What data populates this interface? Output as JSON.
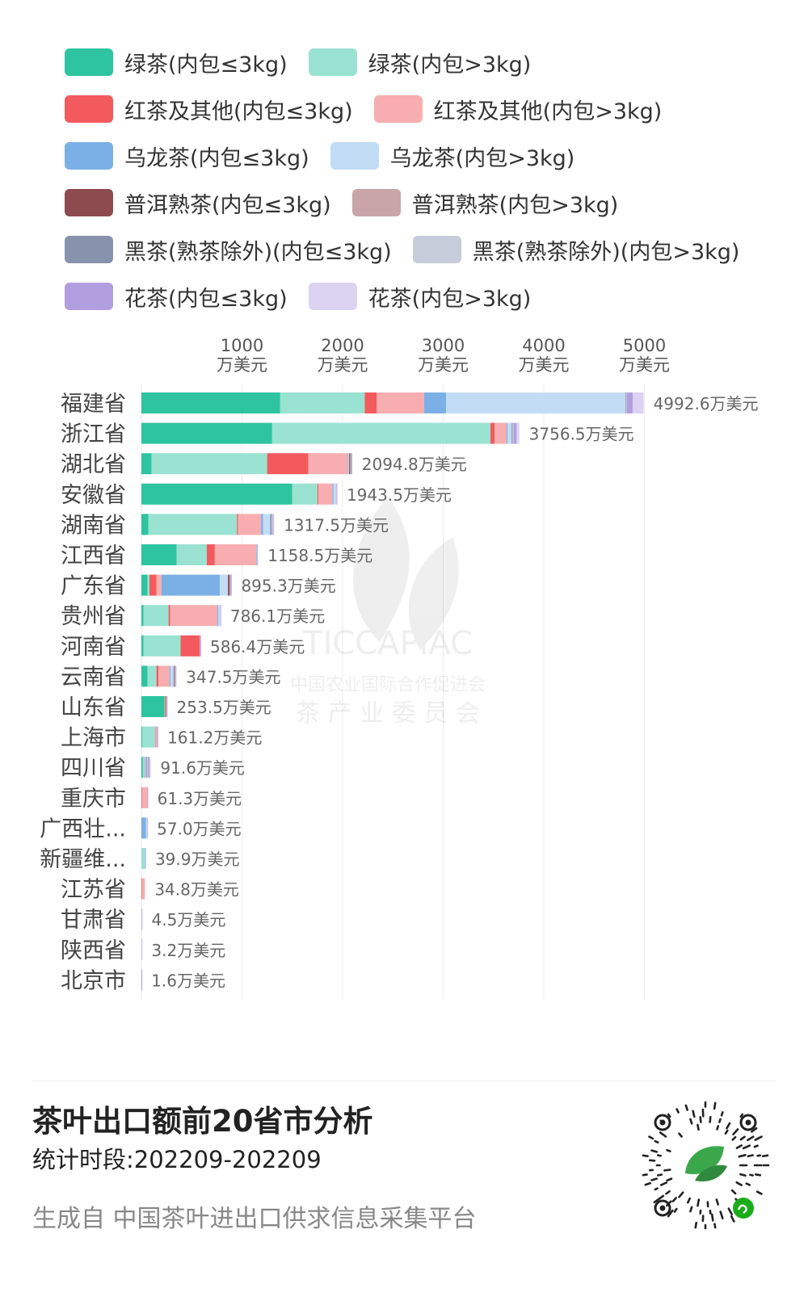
{
  "legend": [
    [
      {
        "label": "绿茶(内包≤3kg)",
        "color": "#2ec4a0"
      },
      {
        "label": "绿茶(内包>3kg)",
        "color": "#9ae2d1"
      }
    ],
    [
      {
        "label": "红茶及其他(内包≤3kg)",
        "color": "#f35a5e"
      },
      {
        "label": "红茶及其他(内包>3kg)",
        "color": "#f8aeb0"
      }
    ],
    [
      {
        "label": "乌龙茶(内包≤3kg)",
        "color": "#7ab0e6"
      },
      {
        "label": "乌龙茶(内包>3kg)",
        "color": "#c3dcf5"
      }
    ],
    [
      {
        "label": "普洱熟茶(内包≤3kg)",
        "color": "#8d4a4f"
      },
      {
        "label": "普洱熟茶(内包>3kg)",
        "color": "#c9a5a7"
      }
    ],
    [
      {
        "label": "黑茶(熟茶除外)(内包≤3kg)",
        "color": "#8793ac"
      },
      {
        "label": "黑茶(熟茶除外)(内包>3kg)",
        "color": "#c6ccda"
      }
    ],
    [
      {
        "label": "花茶(内包≤3kg)",
        "color": "#b29fe0"
      },
      {
        "label": "花茶(内包>3kg)",
        "color": "#dcd2f1"
      }
    ]
  ],
  "chart_data": {
    "type": "bar",
    "orientation": "horizontal",
    "stacked": true,
    "xlim": [
      0,
      5000
    ],
    "ticks": [
      {
        "value": 1000,
        "line1": "1000",
        "line2": "万美元"
      },
      {
        "value": 2000,
        "line1": "2000",
        "line2": "万美元"
      },
      {
        "value": 3000,
        "line1": "3000",
        "line2": "万美元"
      },
      {
        "value": 4000,
        "line1": "4000",
        "line2": "万美元"
      },
      {
        "value": 5000,
        "line1": "5000",
        "line2": "万美元"
      }
    ],
    "grid": true,
    "categories": [
      "福建省",
      "浙江省",
      "湖北省",
      "安徽省",
      "湖南省",
      "江西省",
      "广东省",
      "贵州省",
      "河南省",
      "云南省",
      "山东省",
      "上海市",
      "四川省",
      "重庆市",
      "广西壮...",
      "新疆维...",
      "江苏省",
      "甘肃省",
      "陕西省",
      "北京市"
    ],
    "totals": [
      4992.6,
      3756.5,
      2094.8,
      1943.5,
      1317.5,
      1158.5,
      895.3,
      786.1,
      586.4,
      347.5,
      253.5,
      161.2,
      91.6,
      61.3,
      57.0,
      39.9,
      34.8,
      4.5,
      3.2,
      1.6
    ],
    "total_labels": [
      "4992.6万美元",
      "3756.5万美元",
      "2094.8万美元",
      "1943.5万美元",
      "1317.5万美元",
      "1158.5万美元",
      "895.3万美元",
      "786.1万美元",
      "586.4万美元",
      "347.5万美元",
      "253.5万美元",
      "161.2万美元",
      "91.6万美元",
      "61.3万美元",
      "57.0万美元",
      "39.9万美元",
      "34.8万美元",
      "4.5万美元",
      "3.2万美元",
      "1.6万美元"
    ],
    "series": [
      {
        "name": "绿茶(内包≤3kg)",
        "color": "#2ec4a0",
        "values": [
          1380,
          1300,
          100,
          1500,
          70,
          350,
          60,
          20,
          20,
          60,
          230,
          8,
          15,
          0,
          0,
          0,
          0,
          0,
          0,
          0
        ]
      },
      {
        "name": "绿茶(内包>3kg)",
        "color": "#9ae2d1",
        "values": [
          840,
          2170,
          1150,
          250,
          880,
          300,
          20,
          250,
          370,
          90,
          5,
          130,
          10,
          0,
          0,
          38,
          0,
          0,
          0,
          0
        ]
      },
      {
        "name": "红茶及其他(内包≤3kg)",
        "color": "#f35a5e",
        "values": [
          120,
          40,
          410,
          10,
          10,
          80,
          70,
          15,
          190,
          20,
          10,
          3,
          0,
          5,
          0,
          0,
          5,
          0,
          0,
          0
        ]
      },
      {
        "name": "红茶及其他(内包>3kg)",
        "color": "#f8aeb0",
        "values": [
          470,
          120,
          390,
          140,
          230,
          410,
          50,
          470,
          2,
          110,
          5,
          15,
          5,
          55,
          0,
          0,
          29.8,
          1.5,
          0,
          0
        ]
      },
      {
        "name": "乌龙茶(内包≤3kg)",
        "color": "#7ab0e6",
        "values": [
          220,
          10,
          5,
          10,
          20,
          5,
          580,
          10,
          2,
          10,
          1,
          2,
          5,
          0,
          45,
          0,
          0,
          1,
          1.6,
          0.8
        ]
      },
      {
        "name": "乌龙茶(内包>3kg)",
        "color": "#c3dcf5",
        "values": [
          1780,
          40,
          10,
          30,
          70,
          5,
          80,
          20,
          2,
          30,
          1,
          1,
          10,
          0,
          10,
          0,
          0,
          0,
          0,
          0
        ]
      },
      {
        "name": "普洱熟茶(内包≤3kg)",
        "color": "#8d4a4f",
        "values": [
          0,
          0,
          10,
          0,
          0,
          0,
          15,
          0,
          0,
          5,
          0,
          0,
          0,
          0,
          0,
          0,
          0,
          0,
          0,
          0
        ]
      },
      {
        "name": "普洱熟茶(内包>3kg)",
        "color": "#c9a5a7",
        "values": [
          0,
          0,
          10,
          0,
          0,
          0,
          5,
          0,
          0,
          10,
          0,
          0,
          0,
          0,
          0,
          0,
          0,
          0,
          0,
          0
        ]
      },
      {
        "name": "黑茶(熟茶除外)(内包≤3kg)",
        "color": "#8793ac",
        "values": [
          5,
          10,
          5,
          0,
          15,
          3,
          5,
          0,
          0,
          2,
          0,
          0,
          10,
          0,
          0,
          0,
          0,
          0,
          0,
          0
        ]
      },
      {
        "name": "黑茶(熟茶除外)(内包>3kg)",
        "color": "#c6ccda",
        "values": [
          10,
          10,
          4.8,
          0,
          10,
          0,
          5.3,
          0,
          0,
          0,
          0,
          0,
          11.6,
          0,
          0,
          0,
          0,
          0,
          0,
          0
        ]
      },
      {
        "name": "花茶(内包≤3kg)",
        "color": "#b29fe0",
        "values": [
          60,
          30,
          0,
          3.5,
          7.5,
          0,
          5,
          1.1,
          0.4,
          5.5,
          1.5,
          2.2,
          15,
          1.3,
          2,
          1.9,
          0,
          1,
          0.6,
          0.8
        ]
      },
      {
        "name": "花茶(内包>3kg)",
        "color": "#dcd2f1",
        "values": [
          107.6,
          26.5,
          0,
          0,
          5,
          5.5,
          0,
          0,
          0,
          5,
          0,
          0,
          10,
          0,
          0,
          0,
          0,
          1,
          1,
          0
        ]
      }
    ]
  },
  "watermark": {
    "brand": "TICCAPIAC",
    "line1": "中国农业国际合作促进会",
    "line2": "茶 产 业 委 员 会"
  },
  "footer": {
    "title": "茶叶出口额前20省市分析",
    "period": "统计时段:202209-202209",
    "source": "生成自 中国茶叶进出口供求信息采集平台"
  }
}
